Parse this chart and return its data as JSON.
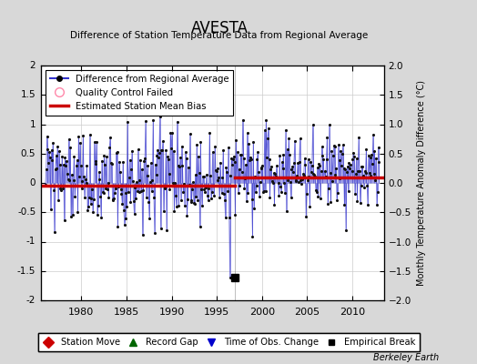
{
  "title": "AVESTA",
  "subtitle": "Difference of Station Temperature Data from Regional Average",
  "ylabel": "Monthly Temperature Anomaly Difference (°C)",
  "credit": "Berkeley Earth",
  "xlim": [
    1975.5,
    2013.5
  ],
  "ylim": [
    -2,
    2
  ],
  "yticks": [
    -2,
    -1.5,
    -1,
    -0.5,
    0,
    0.5,
    1,
    1.5,
    2
  ],
  "xticks": [
    1980,
    1985,
    1990,
    1995,
    2000,
    2005,
    2010
  ],
  "bias1_y": -0.05,
  "bias1_x_end": 1997.0,
  "bias2_y": 0.1,
  "bias2_x_start": 1997.0,
  "break_x": 1997.0,
  "break_y": -1.62,
  "background_color": "#d8d8d8",
  "plot_bg_color": "#ffffff",
  "line_color": "#3333cc",
  "line_fill_color": "#aaaaee",
  "dot_color": "#111111",
  "bias_color": "#cc0000",
  "grid_color": "#cccccc",
  "seed": 12345,
  "start_year": 1976,
  "end_year": 2012,
  "mean1": 0.05,
  "mean2": 0.2,
  "std": 0.38
}
